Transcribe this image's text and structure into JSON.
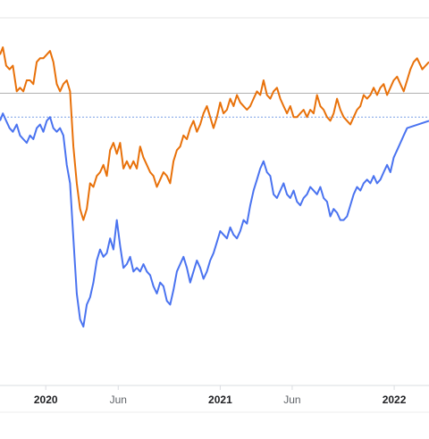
{
  "chart_data": {
    "type": "line",
    "title": "",
    "xlabel": "",
    "ylabel": "",
    "x_tick_labels": [
      "2020",
      "Jun",
      "2021",
      "Jun",
      "2022"
    ],
    "x_ticks": [
      {
        "label": "2020",
        "date": "2020-01-01",
        "bold": true
      },
      {
        "label": "Jun",
        "date": "2020-06-01",
        "bold": false
      },
      {
        "label": "2021",
        "date": "2021-01-01",
        "bold": true
      },
      {
        "label": "Jun",
        "date": "2021-06-01",
        "bold": false
      },
      {
        "label": "2022",
        "date": "2022-01-01",
        "bold": true
      }
    ],
    "x_range": [
      "2019-09-27",
      "2022-03-15"
    ],
    "y_range": [
      0,
      100
    ],
    "grid": {
      "horizontal": true,
      "vertical": false
    },
    "reference_lines": [
      {
        "y": 79.5,
        "color": "#b0b0b0",
        "style": "solid"
      },
      {
        "y": 73.0,
        "color": "#7aa0e6",
        "style": "dotted"
      }
    ],
    "series": [
      {
        "color": "#e8710a",
        "points": [
          [
            "2019-09-27",
            90
          ],
          [
            "2019-10-03",
            92
          ],
          [
            "2019-10-10",
            87
          ],
          [
            "2019-10-17",
            86
          ],
          [
            "2019-10-24",
            87
          ],
          [
            "2019-11-01",
            80
          ],
          [
            "2019-11-08",
            81
          ],
          [
            "2019-11-15",
            80
          ],
          [
            "2019-11-22",
            83
          ],
          [
            "2019-11-29",
            83
          ],
          [
            "2019-12-06",
            82
          ],
          [
            "2019-12-13",
            88
          ],
          [
            "2019-12-20",
            89
          ],
          [
            "2019-12-27",
            89
          ],
          [
            "2020-01-03",
            90
          ],
          [
            "2020-01-10",
            91
          ],
          [
            "2020-01-17",
            88
          ],
          [
            "2020-01-24",
            82
          ],
          [
            "2020-01-31",
            80
          ],
          [
            "2020-02-07",
            82
          ],
          [
            "2020-02-14",
            83
          ],
          [
            "2020-02-21",
            80
          ],
          [
            "2020-02-28",
            65
          ],
          [
            "2020-03-06",
            55
          ],
          [
            "2020-03-13",
            48
          ],
          [
            "2020-03-20",
            45
          ],
          [
            "2020-03-27",
            48
          ],
          [
            "2020-04-03",
            55
          ],
          [
            "2020-04-10",
            54
          ],
          [
            "2020-04-17",
            57
          ],
          [
            "2020-04-24",
            58
          ],
          [
            "2020-05-01",
            60
          ],
          [
            "2020-05-08",
            57
          ],
          [
            "2020-05-15",
            64
          ],
          [
            "2020-05-22",
            66
          ],
          [
            "2020-05-29",
            63
          ],
          [
            "2020-06-05",
            66
          ],
          [
            "2020-06-12",
            59
          ],
          [
            "2020-06-19",
            61
          ],
          [
            "2020-06-26",
            59
          ],
          [
            "2020-07-03",
            61
          ],
          [
            "2020-07-10",
            59
          ],
          [
            "2020-07-17",
            65
          ],
          [
            "2020-07-24",
            62
          ],
          [
            "2020-07-31",
            60
          ],
          [
            "2020-08-07",
            58
          ],
          [
            "2020-08-14",
            57
          ],
          [
            "2020-08-21",
            54
          ],
          [
            "2020-08-28",
            56
          ],
          [
            "2020-09-04",
            58
          ],
          [
            "2020-09-11",
            57
          ],
          [
            "2020-09-18",
            55
          ],
          [
            "2020-09-25",
            61
          ],
          [
            "2020-10-02",
            64
          ],
          [
            "2020-10-09",
            65
          ],
          [
            "2020-10-16",
            68
          ],
          [
            "2020-10-23",
            67
          ],
          [
            "2020-10-30",
            70
          ],
          [
            "2020-11-06",
            72
          ],
          [
            "2020-11-13",
            69
          ],
          [
            "2020-11-20",
            71
          ],
          [
            "2020-11-27",
            74
          ],
          [
            "2020-12-04",
            76
          ],
          [
            "2020-12-11",
            73
          ],
          [
            "2020-12-18",
            70
          ],
          [
            "2020-12-25",
            73
          ],
          [
            "2021-01-01",
            77
          ],
          [
            "2021-01-08",
            74
          ],
          [
            "2021-01-15",
            75
          ],
          [
            "2021-01-22",
            78
          ],
          [
            "2021-01-29",
            76
          ],
          [
            "2021-02-05",
            79
          ],
          [
            "2021-02-12",
            77
          ],
          [
            "2021-02-19",
            76
          ],
          [
            "2021-02-26",
            75
          ],
          [
            "2021-03-05",
            76
          ],
          [
            "2021-03-12",
            78
          ],
          [
            "2021-03-19",
            80
          ],
          [
            "2021-03-26",
            79
          ],
          [
            "2021-04-02",
            83
          ],
          [
            "2021-04-09",
            79
          ],
          [
            "2021-04-16",
            78
          ],
          [
            "2021-04-23",
            80
          ],
          [
            "2021-04-30",
            81
          ],
          [
            "2021-05-07",
            78
          ],
          [
            "2021-05-14",
            76
          ],
          [
            "2021-05-21",
            74
          ],
          [
            "2021-05-28",
            76
          ],
          [
            "2021-06-04",
            73
          ],
          [
            "2021-06-11",
            73
          ],
          [
            "2021-06-18",
            74
          ],
          [
            "2021-06-25",
            75
          ],
          [
            "2021-07-02",
            73
          ],
          [
            "2021-07-09",
            75
          ],
          [
            "2021-07-16",
            74
          ],
          [
            "2021-07-23",
            79
          ],
          [
            "2021-07-30",
            76
          ],
          [
            "2021-08-06",
            75
          ],
          [
            "2021-08-13",
            73
          ],
          [
            "2021-08-20",
            72
          ],
          [
            "2021-08-27",
            74
          ],
          [
            "2021-09-03",
            78
          ],
          [
            "2021-09-10",
            75
          ],
          [
            "2021-09-17",
            73
          ],
          [
            "2021-09-24",
            72
          ],
          [
            "2021-10-01",
            71
          ],
          [
            "2021-10-08",
            73
          ],
          [
            "2021-10-15",
            75
          ],
          [
            "2021-10-22",
            76
          ],
          [
            "2021-10-29",
            79
          ],
          [
            "2021-11-05",
            78
          ],
          [
            "2021-11-12",
            79
          ],
          [
            "2021-11-19",
            81
          ],
          [
            "2021-11-26",
            79
          ],
          [
            "2021-12-03",
            81
          ],
          [
            "2021-12-10",
            82
          ],
          [
            "2021-12-17",
            79
          ],
          [
            "2021-12-24",
            81
          ],
          [
            "2021-12-31",
            83
          ],
          [
            "2022-01-07",
            84
          ],
          [
            "2022-01-14",
            82
          ],
          [
            "2022-01-21",
            80
          ],
          [
            "2022-01-28",
            83
          ],
          [
            "2022-02-04",
            86
          ],
          [
            "2022-02-11",
            88
          ],
          [
            "2022-02-18",
            89
          ],
          [
            "2022-03-01",
            86
          ],
          [
            "2022-03-15",
            88
          ]
        ]
      },
      {
        "color": "#4a73f0",
        "points": [
          [
            "2019-09-27",
            72
          ],
          [
            "2019-10-03",
            74
          ],
          [
            "2019-10-10",
            72
          ],
          [
            "2019-10-17",
            70
          ],
          [
            "2019-10-24",
            69
          ],
          [
            "2019-11-01",
            71
          ],
          [
            "2019-11-08",
            68
          ],
          [
            "2019-11-15",
            67
          ],
          [
            "2019-11-22",
            66
          ],
          [
            "2019-11-29",
            68
          ],
          [
            "2019-12-06",
            67
          ],
          [
            "2019-12-13",
            70
          ],
          [
            "2019-12-20",
            71
          ],
          [
            "2019-12-27",
            69
          ],
          [
            "2020-01-03",
            72
          ],
          [
            "2020-01-10",
            73
          ],
          [
            "2020-01-17",
            70
          ],
          [
            "2020-01-24",
            69
          ],
          [
            "2020-01-31",
            70
          ],
          [
            "2020-02-07",
            68
          ],
          [
            "2020-02-14",
            60
          ],
          [
            "2020-02-21",
            55
          ],
          [
            "2020-02-28",
            40
          ],
          [
            "2020-03-06",
            25
          ],
          [
            "2020-03-13",
            18
          ],
          [
            "2020-03-20",
            16
          ],
          [
            "2020-03-27",
            22
          ],
          [
            "2020-04-03",
            24
          ],
          [
            "2020-04-10",
            28
          ],
          [
            "2020-04-17",
            34
          ],
          [
            "2020-04-24",
            37
          ],
          [
            "2020-05-01",
            35
          ],
          [
            "2020-05-08",
            36
          ],
          [
            "2020-05-15",
            40
          ],
          [
            "2020-05-22",
            37
          ],
          [
            "2020-05-29",
            45
          ],
          [
            "2020-06-05",
            38
          ],
          [
            "2020-06-12",
            32
          ],
          [
            "2020-06-19",
            33
          ],
          [
            "2020-06-26",
            35
          ],
          [
            "2020-07-03",
            31
          ],
          [
            "2020-07-10",
            32
          ],
          [
            "2020-07-17",
            31
          ],
          [
            "2020-07-24",
            33
          ],
          [
            "2020-07-31",
            31
          ],
          [
            "2020-08-07",
            30
          ],
          [
            "2020-08-14",
            27
          ],
          [
            "2020-08-21",
            25
          ],
          [
            "2020-08-28",
            28
          ],
          [
            "2020-09-04",
            27
          ],
          [
            "2020-09-11",
            23
          ],
          [
            "2020-09-18",
            22
          ],
          [
            "2020-09-25",
            26
          ],
          [
            "2020-10-02",
            31
          ],
          [
            "2020-10-09",
            33
          ],
          [
            "2020-10-16",
            35
          ],
          [
            "2020-10-23",
            32
          ],
          [
            "2020-10-30",
            28
          ],
          [
            "2020-11-06",
            31
          ],
          [
            "2020-11-13",
            34
          ],
          [
            "2020-11-20",
            32
          ],
          [
            "2020-11-27",
            29
          ],
          [
            "2020-12-04",
            31
          ],
          [
            "2020-12-11",
            34
          ],
          [
            "2020-12-18",
            36
          ],
          [
            "2020-12-25",
            39
          ],
          [
            "2021-01-01",
            42
          ],
          [
            "2021-01-08",
            41
          ],
          [
            "2021-01-15",
            40
          ],
          [
            "2021-01-22",
            43
          ],
          [
            "2021-01-29",
            41
          ],
          [
            "2021-02-05",
            40
          ],
          [
            "2021-02-12",
            42
          ],
          [
            "2021-02-19",
            45
          ],
          [
            "2021-02-26",
            44
          ],
          [
            "2021-03-05",
            49
          ],
          [
            "2021-03-12",
            53
          ],
          [
            "2021-03-19",
            56
          ],
          [
            "2021-03-26",
            59
          ],
          [
            "2021-04-02",
            61
          ],
          [
            "2021-04-09",
            58
          ],
          [
            "2021-04-16",
            57
          ],
          [
            "2021-04-23",
            52
          ],
          [
            "2021-04-30",
            51
          ],
          [
            "2021-05-07",
            53
          ],
          [
            "2021-05-14",
            55
          ],
          [
            "2021-05-21",
            52
          ],
          [
            "2021-05-28",
            51
          ],
          [
            "2021-06-04",
            53
          ],
          [
            "2021-06-11",
            50
          ],
          [
            "2021-06-18",
            49
          ],
          [
            "2021-06-25",
            51
          ],
          [
            "2021-07-02",
            52
          ],
          [
            "2021-07-09",
            54
          ],
          [
            "2021-07-16",
            53
          ],
          [
            "2021-07-23",
            52
          ],
          [
            "2021-07-30",
            54
          ],
          [
            "2021-08-06",
            51
          ],
          [
            "2021-08-13",
            50
          ],
          [
            "2021-08-20",
            46
          ],
          [
            "2021-08-27",
            48
          ],
          [
            "2021-09-03",
            47
          ],
          [
            "2021-09-10",
            45
          ],
          [
            "2021-09-17",
            45
          ],
          [
            "2021-09-24",
            46
          ],
          [
            "2021-10-01",
            49
          ],
          [
            "2021-10-08",
            52
          ],
          [
            "2021-10-15",
            54
          ],
          [
            "2021-10-22",
            53
          ],
          [
            "2021-10-29",
            55
          ],
          [
            "2021-11-05",
            56
          ],
          [
            "2021-11-12",
            55
          ],
          [
            "2021-11-19",
            57
          ],
          [
            "2021-11-26",
            55
          ],
          [
            "2021-12-03",
            56
          ],
          [
            "2021-12-10",
            58
          ],
          [
            "2021-12-17",
            60
          ],
          [
            "2021-12-24",
            58
          ],
          [
            "2021-12-31",
            62
          ],
          [
            "2022-01-07",
            64
          ],
          [
            "2022-01-14",
            66
          ],
          [
            "2022-01-21",
            68
          ],
          [
            "2022-01-28",
            70
          ],
          [
            "2022-03-15",
            72
          ]
        ]
      }
    ]
  }
}
